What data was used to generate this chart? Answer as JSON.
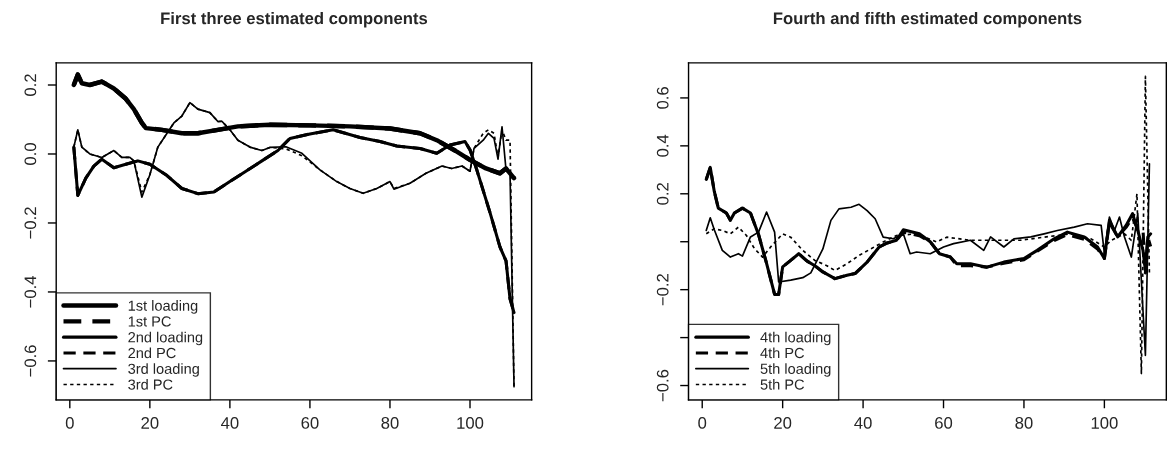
{
  "chart_data": [
    {
      "type": "line",
      "title": "First three estimated components",
      "xlim": [
        -3.4,
        115.4
      ],
      "ylim": [
        -0.713,
        0.264
      ],
      "xticks": [
        0,
        20,
        40,
        60,
        80,
        100
      ],
      "yticks": [
        {
          "value": -0.6,
          "label": "−0.6"
        },
        {
          "value": -0.4,
          "label": "−0.4"
        },
        {
          "value": -0.2,
          "label": "−0.2"
        },
        {
          "value": 0,
          "label": "0.0"
        },
        {
          "value": 0.2,
          "label": "0.2"
        }
      ],
      "legend": "bottom left",
      "grid": false,
      "series": [
        {
          "name": "1st loading",
          "color": "#000000",
          "line_style": "solid",
          "x": [
            1,
            2,
            3,
            5,
            8,
            11,
            14,
            16,
            18,
            19,
            23,
            28,
            32,
            37,
            42,
            50,
            60,
            70,
            80,
            87.5,
            91.7,
            96.7,
            100,
            104,
            107.5,
            109,
            111
          ],
          "values": [
            0.2,
            0.23,
            0.205,
            0.2,
            0.21,
            0.19,
            0.16,
            0.13,
            0.09,
            0.075,
            0.07,
            0.06,
            0.06,
            0.07,
            0.08,
            0.085,
            0.083,
            0.08,
            0.074,
            0.06,
            0.04,
            0.007,
            -0.017,
            -0.042,
            -0.056,
            -0.042,
            -0.07
          ]
        },
        {
          "name": "1st PC",
          "color": "#000000",
          "line_style": "dashed",
          "x": [
            1,
            2,
            3,
            5,
            8,
            11,
            14,
            16,
            18,
            19,
            23,
            28,
            32,
            37,
            42,
            50,
            60,
            70,
            80,
            87.5,
            91.7,
            96.7,
            100,
            104,
            107.5,
            109,
            111
          ],
          "values": [
            0.2,
            0.23,
            0.205,
            0.2,
            0.21,
            0.19,
            0.16,
            0.13,
            0.09,
            0.075,
            0.07,
            0.06,
            0.06,
            0.07,
            0.08,
            0.085,
            0.083,
            0.08,
            0.074,
            0.06,
            0.04,
            0.007,
            -0.017,
            -0.042,
            -0.056,
            -0.042,
            -0.07
          ]
        },
        {
          "name": "2nd loading",
          "color": "#000000",
          "line_style": "solid",
          "x": [
            1,
            2,
            4,
            6,
            8,
            11,
            14,
            17,
            20,
            24,
            28,
            32,
            36,
            40,
            44,
            48,
            52,
            55,
            60,
            65.8,
            72.5,
            77.5,
            81.7,
            87.5,
            91.7,
            95,
            98.75,
            100,
            101.7,
            105,
            107.5,
            109,
            110,
            111
          ],
          "values": [
            0.02,
            -0.12,
            -0.07,
            -0.035,
            -0.015,
            -0.04,
            -0.03,
            -0.02,
            -0.03,
            -0.06,
            -0.1,
            -0.115,
            -0.11,
            -0.08,
            -0.05,
            -0.02,
            0.01,
            0.045,
            0.058,
            0.07,
            0.048,
            0.036,
            0.023,
            0.016,
            0.002,
            0.026,
            0.036,
            0.012,
            -0.046,
            -0.17,
            -0.27,
            -0.31,
            -0.42,
            -0.46
          ]
        },
        {
          "name": "2nd PC",
          "color": "#000000",
          "line_style": "dashed",
          "x": [
            1,
            2,
            4,
            6,
            8,
            11,
            14,
            17,
            20,
            24,
            28,
            32,
            36,
            40,
            44,
            48,
            52,
            55,
            60,
            65.8,
            72.5,
            77.5,
            81.7,
            87.5,
            91.7,
            95,
            98.75,
            100,
            101.7,
            105,
            107.5,
            109,
            110,
            111
          ],
          "values": [
            0.02,
            -0.12,
            -0.07,
            -0.035,
            -0.015,
            -0.04,
            -0.03,
            -0.02,
            -0.03,
            -0.06,
            -0.1,
            -0.115,
            -0.11,
            -0.08,
            -0.05,
            -0.02,
            0.01,
            0.045,
            0.058,
            0.07,
            0.048,
            0.036,
            0.023,
            0.016,
            0.002,
            0.026,
            0.036,
            0.012,
            -0.046,
            -0.17,
            -0.27,
            -0.31,
            -0.42,
            -0.46
          ]
        },
        {
          "name": "3rd loading",
          "color": "#000000",
          "line_style": "solid",
          "x": [
            1,
            2,
            3,
            5,
            8,
            11,
            13,
            15,
            16,
            18,
            20,
            22,
            24,
            26,
            28,
            30,
            32,
            35,
            37,
            38,
            40,
            42,
            45,
            48,
            50,
            54,
            58,
            62.5,
            66.7,
            70,
            73.3,
            76.7,
            80,
            81,
            85,
            89,
            93,
            95.4,
            98,
            100,
            101,
            103.3,
            104.6,
            106,
            107,
            108,
            109,
            110,
            111
          ],
          "values": [
            0.02,
            0.07,
            0.02,
            0.0,
            -0.01,
            0.01,
            -0.01,
            -0.01,
            -0.02,
            -0.125,
            -0.06,
            0.02,
            0.055,
            0.09,
            0.11,
            0.149,
            0.13,
            0.12,
            0.094,
            0.095,
            0.07,
            0.04,
            0.02,
            0.01,
            0.019,
            0.021,
            0.002,
            -0.046,
            -0.08,
            -0.1,
            -0.114,
            -0.1,
            -0.08,
            -0.102,
            -0.085,
            -0.056,
            -0.035,
            -0.042,
            -0.035,
            -0.05,
            0.016,
            0.04,
            0.06,
            0.045,
            -0.015,
            0.079,
            -0.046,
            -0.056,
            -0.675
          ]
        },
        {
          "name": "3rd PC",
          "color": "#000000",
          "line_style": "dotted",
          "x": [
            1,
            2,
            3,
            5,
            8,
            11,
            13,
            15,
            16,
            18,
            20,
            22,
            24,
            26,
            28,
            30,
            32,
            35,
            37,
            38,
            40,
            42,
            45,
            48,
            50,
            54,
            58,
            62.5,
            66.7,
            70,
            73.3,
            76.7,
            80,
            81,
            85,
            89,
            93,
            95.4,
            98,
            100,
            101,
            103.3,
            104.6,
            106,
            107,
            108,
            109,
            110,
            111
          ],
          "values": [
            0.02,
            0.07,
            0.02,
            0.0,
            -0.01,
            0.01,
            -0.01,
            -0.01,
            -0.02,
            -0.11,
            -0.06,
            0.02,
            0.055,
            0.09,
            0.11,
            0.149,
            0.13,
            0.12,
            0.094,
            0.095,
            0.07,
            0.04,
            0.02,
            0.01,
            0.019,
            0.015,
            -0.005,
            -0.046,
            -0.08,
            -0.1,
            -0.114,
            -0.1,
            -0.08,
            -0.1,
            -0.085,
            -0.056,
            -0.035,
            -0.042,
            -0.035,
            -0.05,
            0.016,
            0.06,
            0.07,
            0.06,
            -0.01,
            0.07,
            0.04,
            0.04,
            -0.68
          ]
        }
      ]
    },
    {
      "type": "line",
      "title": "Fourth and fifth estimated components",
      "xlim": [
        -3.4,
        115.4
      ],
      "ylim": [
        -0.66,
        0.746
      ],
      "xticks": [
        0,
        20,
        40,
        60,
        80,
        100
      ],
      "yticks": [
        {
          "value": -0.6,
          "label": "−0.6"
        },
        {
          "value": -0.4,
          "label": null
        },
        {
          "value": -0.2,
          "label": "−0.2"
        },
        {
          "value": 0,
          "label": null
        },
        {
          "value": 0.2,
          "label": "0.2"
        },
        {
          "value": 0.4,
          "label": "0.4"
        },
        {
          "value": 0.6,
          "label": "0.6"
        }
      ],
      "legend": "bottom left",
      "grid": false,
      "series": [
        {
          "name": "4th loading",
          "color": "#000000",
          "line_style": "solid",
          "x": [
            1,
            2,
            3,
            4,
            6,
            7,
            8,
            10,
            12,
            14,
            16,
            18,
            19,
            20,
            22,
            24,
            26,
            28,
            30,
            33,
            36,
            38,
            41,
            44,
            46,
            48.3,
            50,
            54,
            56.7,
            59,
            61.7,
            63.3,
            66.7,
            70.8,
            75,
            80,
            83.3,
            87.5,
            90.8,
            95,
            98.3,
            100,
            101.25,
            103.3,
            105.4,
            107,
            108.3,
            109.6,
            110.2,
            110.8,
            111.5
          ],
          "values": [
            0.26,
            0.31,
            0.21,
            0.14,
            0.12,
            0.09,
            0.12,
            0.14,
            0.12,
            0.03,
            -0.09,
            -0.22,
            -0.22,
            -0.105,
            -0.078,
            -0.05,
            -0.08,
            -0.1,
            -0.126,
            -0.154,
            -0.14,
            -0.133,
            -0.085,
            -0.022,
            -0.005,
            0.006,
            0.05,
            0.033,
            0.0,
            -0.05,
            -0.064,
            -0.092,
            -0.092,
            -0.106,
            -0.085,
            -0.07,
            -0.036,
            0.012,
            0.04,
            0.02,
            -0.022,
            -0.07,
            0.089,
            0.02,
            0.068,
            0.117,
            0.047,
            -0.036,
            -0.12,
            0.02,
            0.033
          ]
        },
        {
          "name": "4th PC",
          "color": "#000000",
          "line_style": "dashed",
          "x": [
            1,
            2,
            3,
            4,
            6,
            7,
            8,
            10,
            12,
            14,
            16,
            18,
            19,
            20,
            22,
            24,
            26,
            28,
            30,
            33,
            36,
            38,
            41,
            44,
            46,
            48.3,
            50,
            54,
            56.7,
            59,
            61.7,
            63.3,
            66.7,
            70.8,
            75,
            80,
            83.3,
            87.5,
            90.8,
            95,
            98.3,
            100,
            101.25,
            103.3,
            105.4,
            107,
            108.3,
            109.6,
            110.2,
            110.8,
            111.5
          ],
          "values": [
            0.26,
            0.31,
            0.21,
            0.14,
            0.12,
            0.09,
            0.12,
            0.14,
            0.12,
            0.03,
            -0.09,
            -0.22,
            -0.22,
            -0.105,
            -0.078,
            -0.05,
            -0.08,
            -0.1,
            -0.126,
            -0.154,
            -0.14,
            -0.133,
            -0.085,
            -0.022,
            -0.005,
            0.006,
            0.04,
            0.025,
            0.0,
            -0.05,
            -0.064,
            -0.1,
            -0.1,
            -0.106,
            -0.09,
            -0.075,
            -0.04,
            0.005,
            0.03,
            0.01,
            -0.03,
            -0.07,
            0.08,
            0.02,
            0.06,
            0.1,
            0.05,
            0.05,
            -0.13,
            0.02,
            -0.02
          ]
        },
        {
          "name": "5th loading",
          "color": "#000000",
          "line_style": "solid",
          "x": [
            1,
            2,
            3,
            5,
            7,
            9,
            10,
            12,
            14,
            16,
            18,
            19,
            22,
            25,
            27,
            30,
            32,
            34,
            37,
            39,
            41,
            43,
            45,
            47.5,
            50,
            51.7,
            53.3,
            56.7,
            60,
            62.5,
            66.7,
            70,
            71.7,
            75,
            77.5,
            81.7,
            85,
            88.3,
            92.5,
            95.8,
            99.2,
            100,
            101.25,
            102.5,
            103.75,
            105,
            106.7,
            108.3,
            110.2,
            111.2
          ],
          "values": [
            0.047,
            0.1,
            0.05,
            -0.036,
            -0.064,
            -0.05,
            -0.06,
            0.02,
            0.04,
            0.124,
            0.04,
            -0.168,
            -0.16,
            -0.15,
            -0.13,
            -0.03,
            0.089,
            0.137,
            0.144,
            0.156,
            0.13,
            0.096,
            0.019,
            0.0125,
            0.033,
            -0.05,
            -0.043,
            -0.05,
            -0.022,
            -0.008,
            0.006,
            -0.036,
            0.02,
            -0.022,
            0.012,
            0.02,
            0.033,
            0.047,
            0.061,
            0.075,
            0.068,
            -0.05,
            0.103,
            0.047,
            0.103,
            0.02,
            -0.064,
            0.117,
            -0.474,
            0.325
          ]
        },
        {
          "name": "5th PC",
          "color": "#000000",
          "line_style": "dotted",
          "x": [
            1,
            3,
            5,
            7,
            9,
            11,
            13,
            15,
            17,
            20,
            22,
            25,
            28,
            31,
            33,
            36,
            39,
            42,
            45,
            48.3,
            53.3,
            58.3,
            60.8,
            66.7,
            73.3,
            79,
            85,
            91.7,
            96.7,
            100,
            101.7,
            105,
            106.7,
            108.1,
            109.2,
            110.2,
            111.2
          ],
          "values": [
            0.033,
            0.054,
            0.047,
            0.033,
            0.061,
            0.026,
            -0.029,
            -0.064,
            -0.022,
            0.033,
            0.019,
            -0.036,
            -0.078,
            -0.1,
            -0.12,
            -0.092,
            -0.057,
            -0.029,
            -0.001,
            0.026,
            0.033,
            -0.001,
            0.019,
            0.006,
            0.006,
            0.006,
            0.019,
            0.033,
            0.012,
            -0.022,
            0.006,
            0.033,
            0.006,
            0.2,
            -0.55,
            0.69,
            -0.133
          ]
        }
      ]
    }
  ]
}
